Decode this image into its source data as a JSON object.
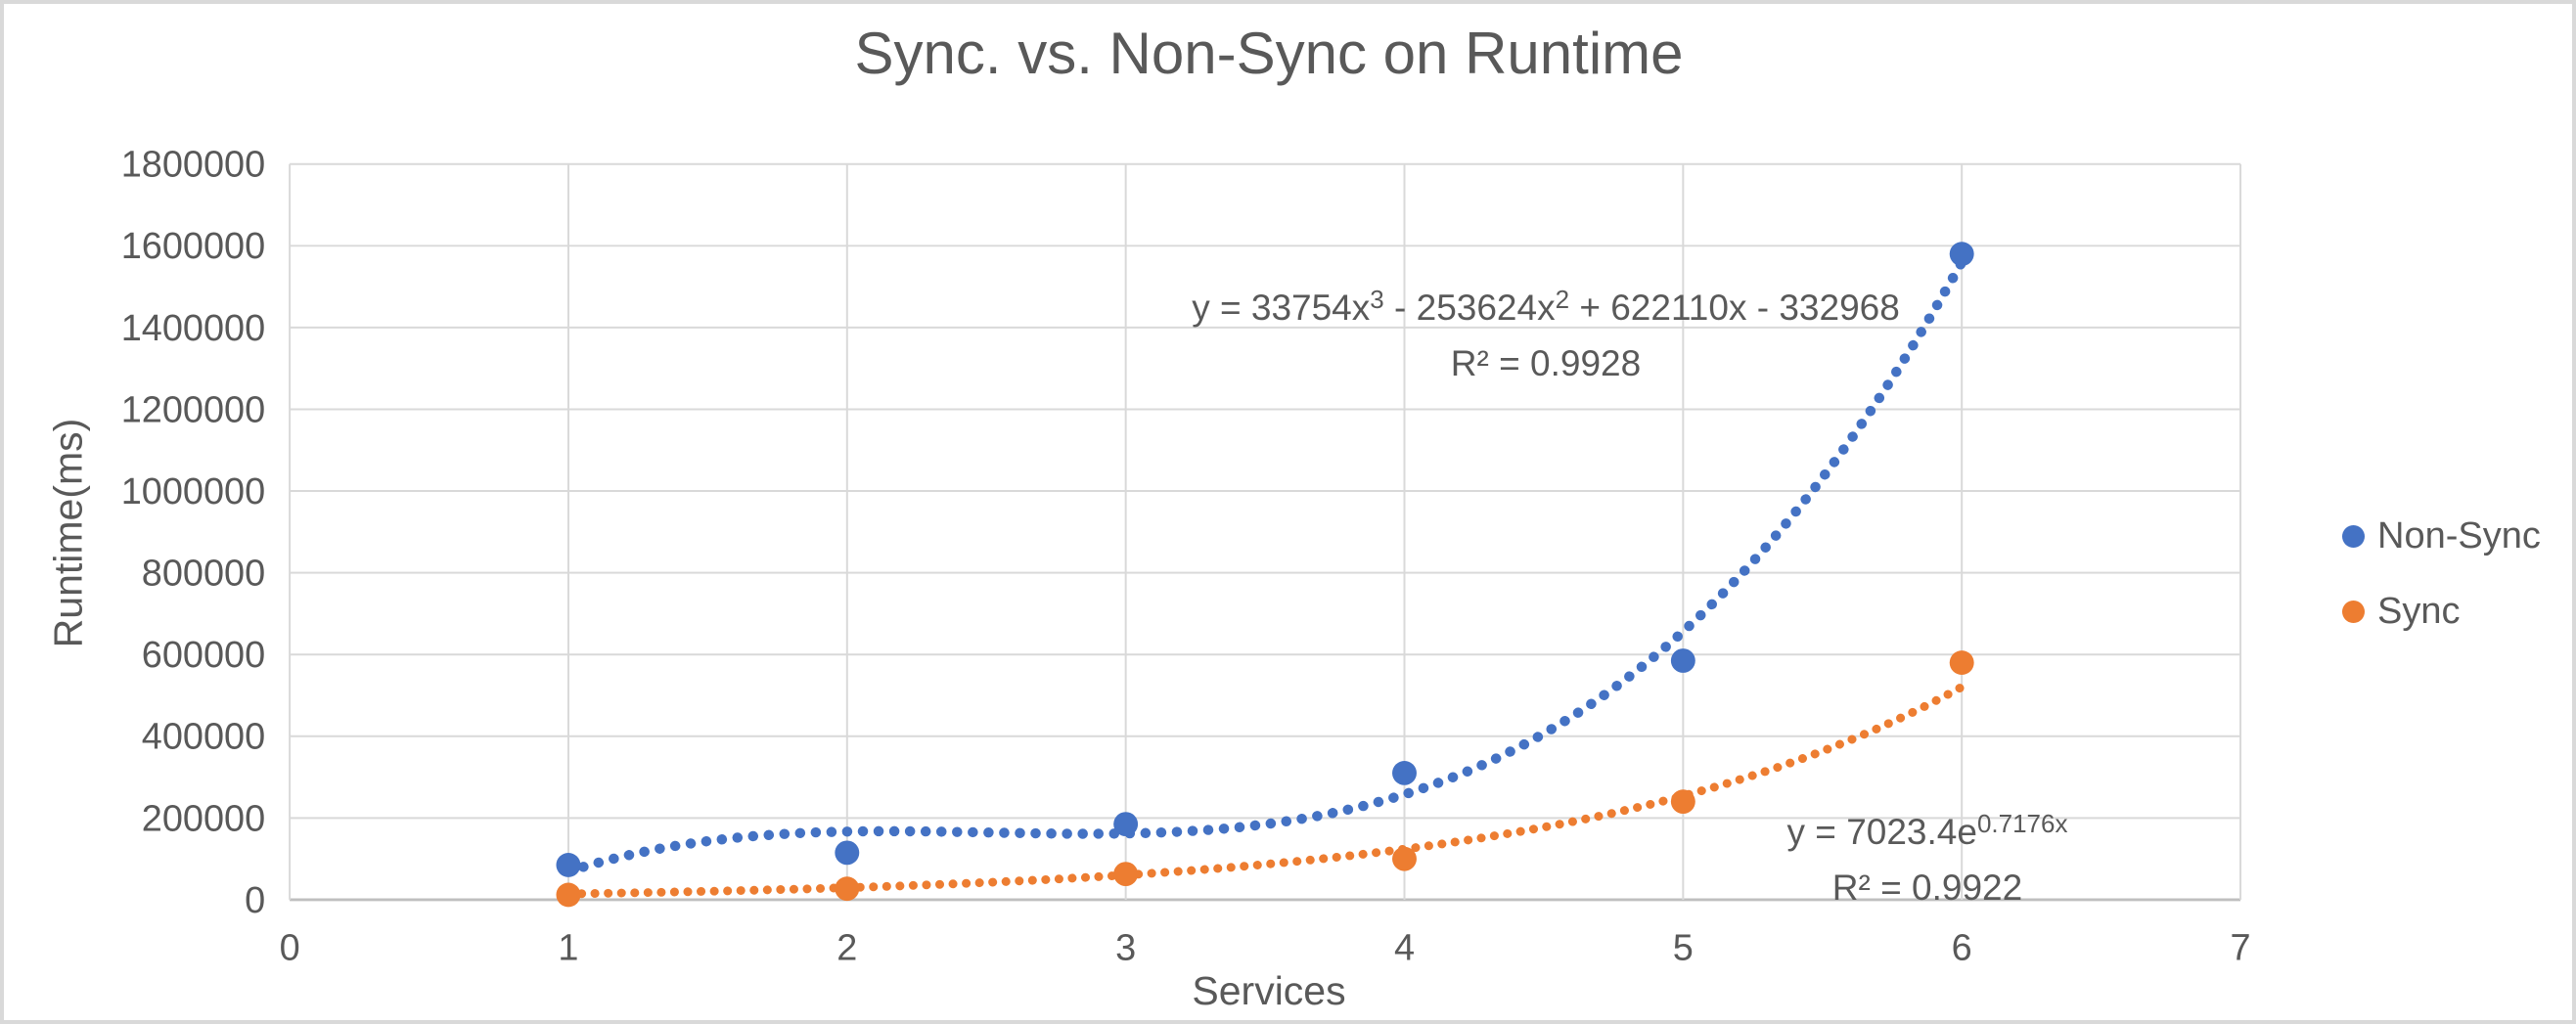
{
  "title": "Sync. vs. Non-Sync on Runtime",
  "colors": {
    "non_sync": "#4472C4",
    "sync": "#ED7D31",
    "text": "#595959",
    "gridline": "#D9D9D9",
    "axis_line": "#BFBFBF",
    "background": "#FFFFFF",
    "border": "#D9D9D9"
  },
  "chart_data": {
    "type": "scatter",
    "title": "Sync. vs. Non-Sync on Runtime",
    "xlabel": "Services",
    "ylabel": "Runtime(ms)",
    "xlim": [
      0,
      7
    ],
    "ylim": [
      0,
      1800000
    ],
    "x_ticks": [
      0,
      1,
      2,
      3,
      4,
      5,
      6,
      7
    ],
    "y_ticks": [
      0,
      200000,
      400000,
      600000,
      800000,
      1000000,
      1200000,
      1400000,
      1600000,
      1800000
    ],
    "grid": true,
    "legend_position": "right",
    "series": [
      {
        "name": "Non-Sync",
        "color": "#4472C4",
        "marker": "circle",
        "points": [
          [
            1,
            85000
          ],
          [
            2,
            115000
          ],
          [
            3,
            185000
          ],
          [
            4,
            310000
          ],
          [
            5,
            585000
          ],
          [
            6,
            1580000
          ]
        ],
        "trendline": {
          "type": "polynomial",
          "order": 3,
          "coefficients": [
            33754,
            -253624,
            622110,
            -332968
          ],
          "range": [
            1,
            6
          ],
          "style": "dotted",
          "equation_text": "y = 33754x3 - 253624x2 + 622110x - 332968",
          "r2_text": "R² = 0.9928"
        }
      },
      {
        "name": "Sync",
        "color": "#ED7D31",
        "marker": "circle",
        "points": [
          [
            1,
            12000
          ],
          [
            2,
            27000
          ],
          [
            3,
            63000
          ],
          [
            4,
            100000
          ],
          [
            5,
            240000
          ],
          [
            6,
            580000
          ]
        ],
        "trendline": {
          "type": "exponential",
          "a": 7023.4,
          "b": 0.7176,
          "range": [
            1,
            6
          ],
          "style": "dotted",
          "equation_text": "y = 7023.4e0.7176x",
          "r2_text": "R² = 0.9922"
        }
      }
    ]
  },
  "axis_titles": {
    "x": "Services",
    "y": "Runtime(ms)"
  },
  "legend": {
    "items": [
      {
        "label": "Non-Sync",
        "color": "#4472C4"
      },
      {
        "label": "Sync",
        "color": "#ED7D31"
      }
    ]
  },
  "annotations": {
    "non_sync_eq": {
      "s0": "y = 33754x",
      "s1": "3",
      "s2": " - 253624x",
      "s3": "2",
      "s4": " + 622110x - 332968",
      "r2": "R² = 0.9928"
    },
    "sync_eq": {
      "s0": "y = 7023.4e",
      "s1": "0.7176x",
      "r2": "R² = 0.9922"
    }
  }
}
